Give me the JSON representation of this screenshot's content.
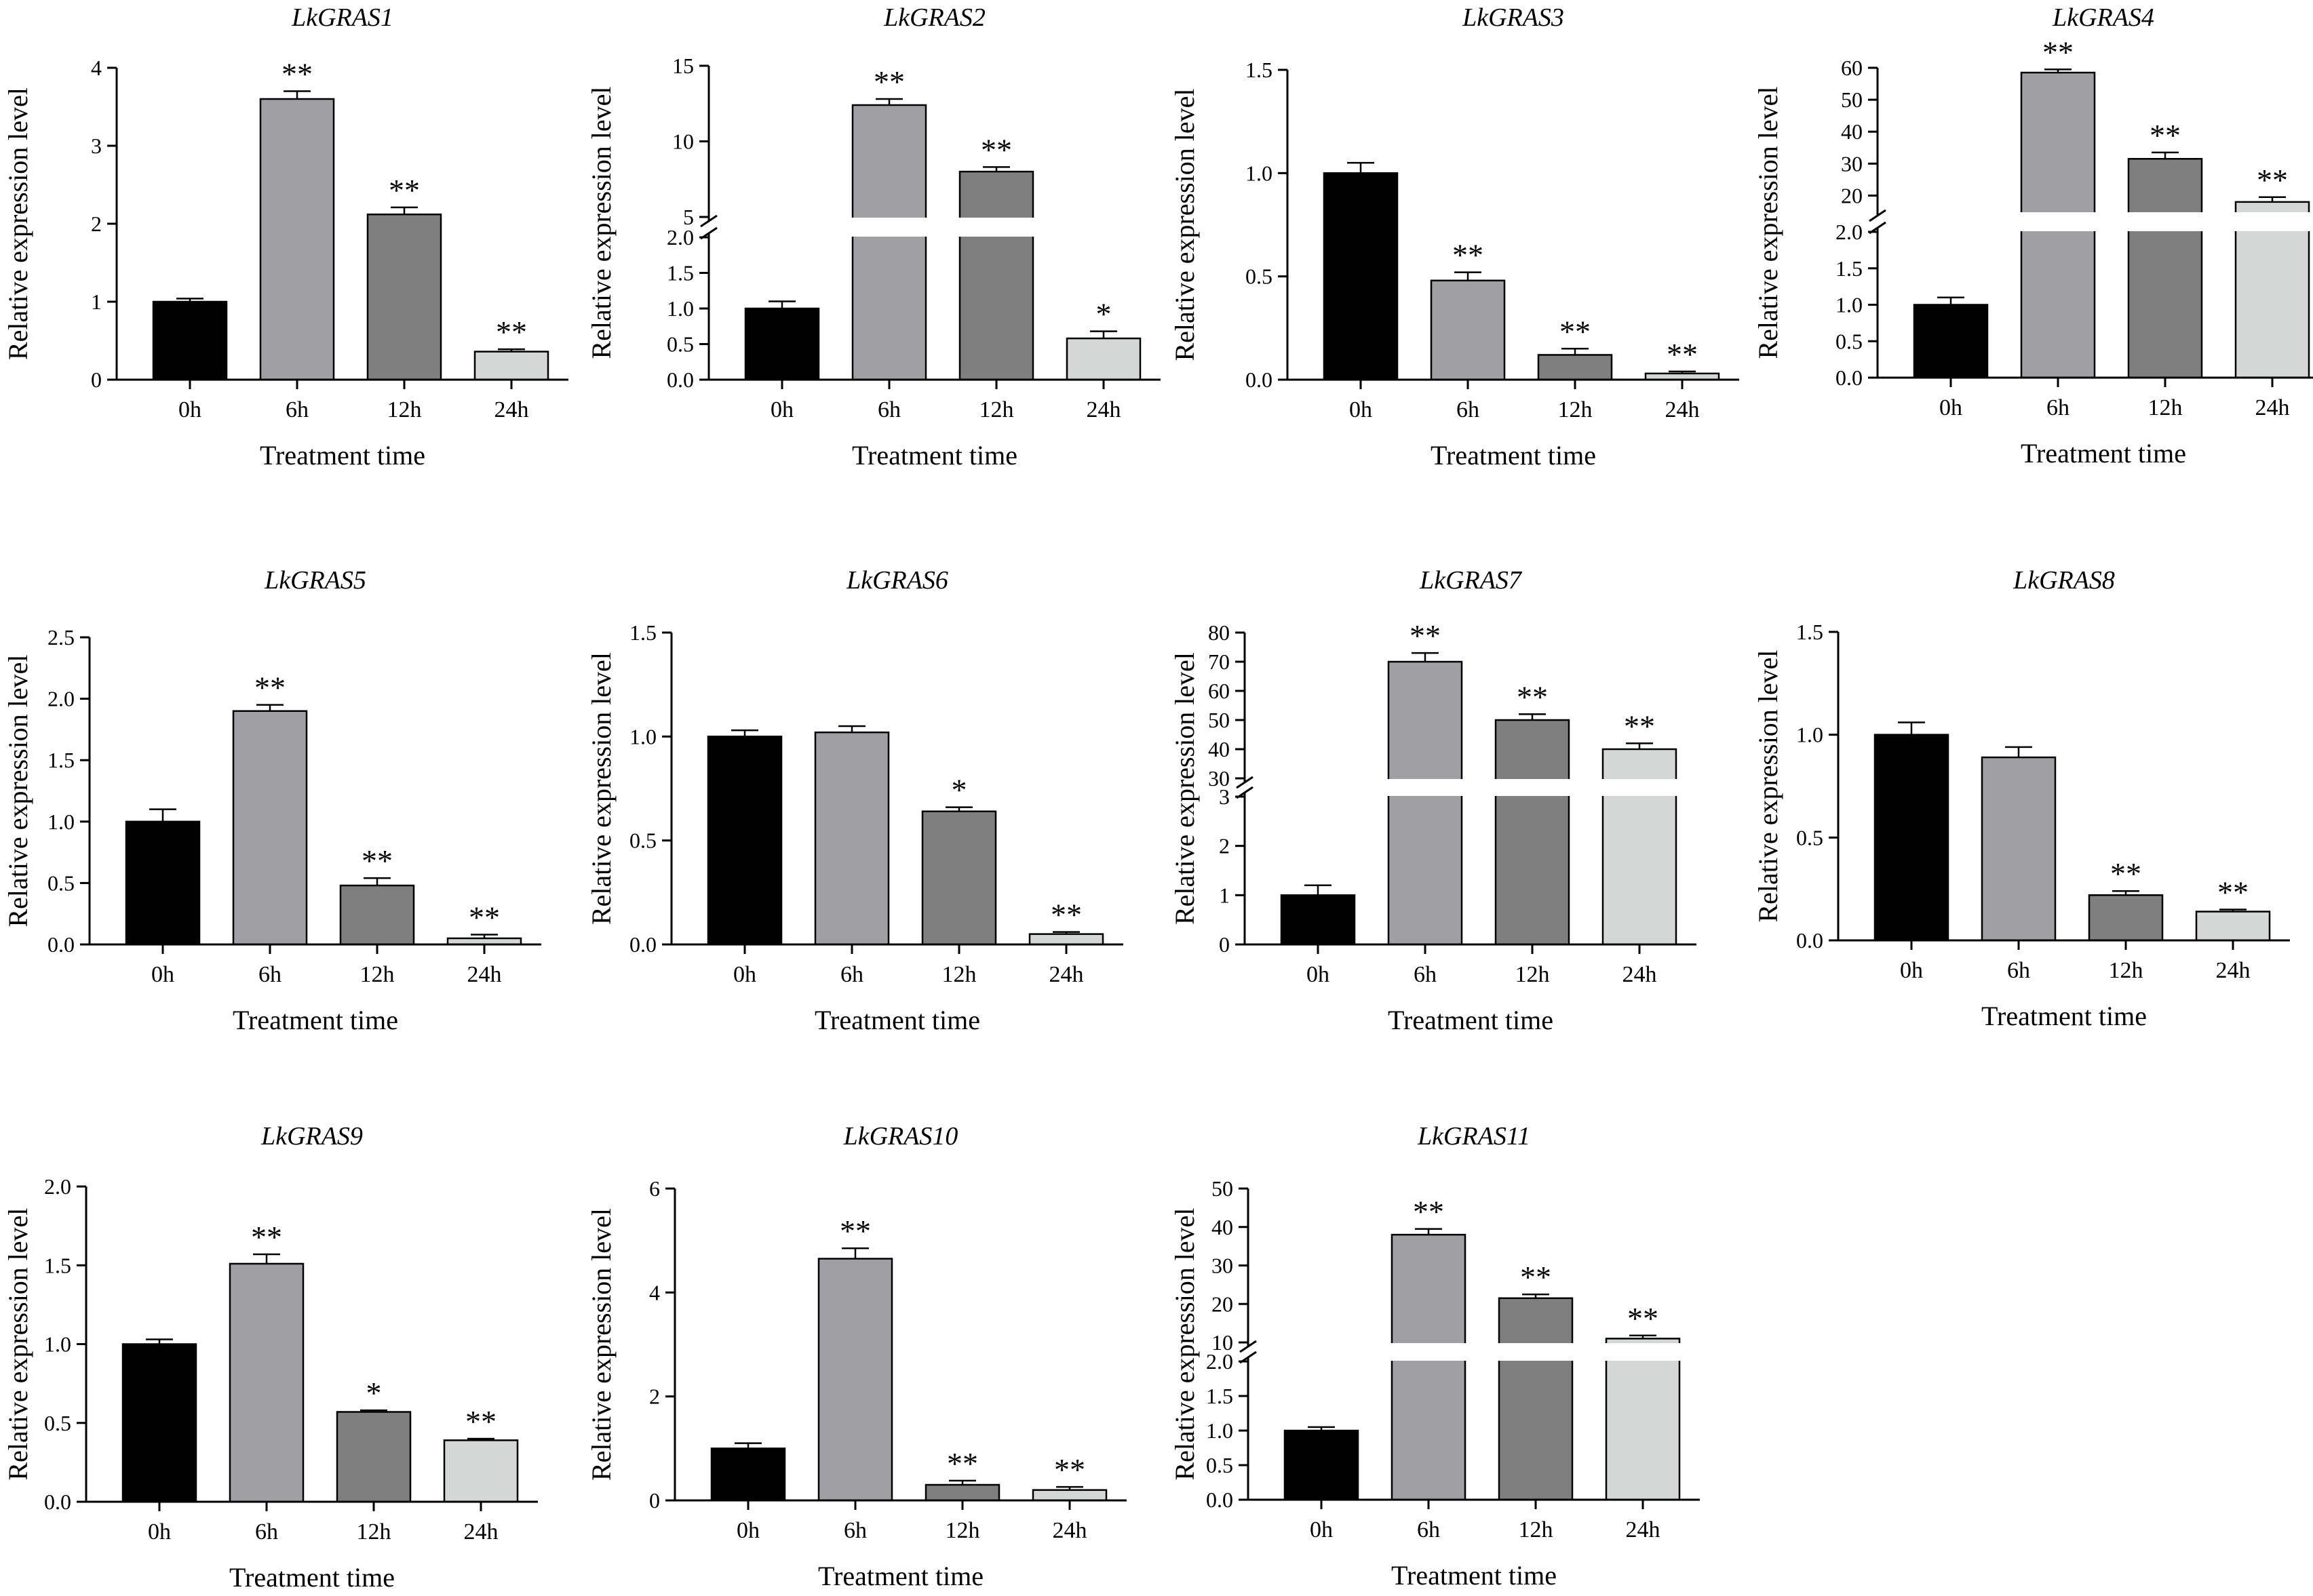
{
  "figure": {
    "categories": [
      "0h",
      "6h",
      "12h",
      "24h"
    ],
    "xlabel": "Treatment time",
    "ylabel": "Relative expression level",
    "bar_colors": [
      "#000000",
      "#a09fa4",
      "#7f7f7f",
      "#d5d7d6"
    ]
  },
  "chart_data": [
    {
      "type": "bar",
      "title": "LkGRAS1",
      "categories": [
        "0h",
        "6h",
        "12h",
        "24h"
      ],
      "values": [
        1.0,
        3.6,
        2.12,
        0.36
      ],
      "errors": [
        0.04,
        0.1,
        0.09,
        0.03
      ],
      "significance": [
        "",
        "**",
        "**",
        "**"
      ],
      "xlabel": "Treatment time",
      "ylabel": "Relative expression level",
      "ylim": [
        0,
        4
      ],
      "yticks": [
        "0",
        "1",
        "2",
        "3",
        "4"
      ],
      "grid": false
    },
    {
      "type": "bar",
      "title": "LkGRAS2",
      "categories": [
        "0h",
        "6h",
        "12h",
        "24h"
      ],
      "values": [
        1.0,
        12.4,
        8.0,
        0.58
      ],
      "errors": [
        0.1,
        0.4,
        0.3,
        0.1
      ],
      "significance": [
        "",
        "**",
        "**",
        "*"
      ],
      "xlabel": "Treatment time",
      "ylabel": "Relative expression level",
      "axis_break": true,
      "lower_ylim": [
        0,
        2.0
      ],
      "lower_yticks": [
        "0.0",
        "0.5",
        "1.0",
        "1.5",
        "2.0"
      ],
      "upper_ylim": [
        5,
        15
      ],
      "upper_yticks": [
        "5",
        "10",
        "15"
      ],
      "grid": false
    },
    {
      "type": "bar",
      "title": "LkGRAS3",
      "categories": [
        "0h",
        "6h",
        "12h",
        "24h"
      ],
      "values": [
        1.0,
        0.48,
        0.12,
        0.03
      ],
      "errors": [
        0.05,
        0.04,
        0.03,
        0.01
      ],
      "significance": [
        "",
        "**",
        "**",
        "**"
      ],
      "xlabel": "Treatment time",
      "ylabel": "Relative expression level",
      "ylim": [
        0,
        1.5
      ],
      "yticks": [
        "0.0",
        "0.5",
        "1.0",
        "1.5"
      ],
      "grid": false
    },
    {
      "type": "bar",
      "title": "LkGRAS4",
      "categories": [
        "0h",
        "6h",
        "12h",
        "24h"
      ],
      "values": [
        1.0,
        58.5,
        31.5,
        18.0
      ],
      "errors": [
        0.1,
        1.0,
        2.0,
        1.5
      ],
      "significance": [
        "",
        "**",
        "**",
        "**"
      ],
      "xlabel": "Treatment time",
      "ylabel": "Relative expression level",
      "axis_break": true,
      "lower_ylim": [
        0,
        2.0
      ],
      "lower_yticks": [
        "0.0",
        "0.5",
        "1.0",
        "1.5",
        "2.0"
      ],
      "upper_ylim": [
        15,
        60
      ],
      "upper_yticks": [
        "20",
        "30",
        "40",
        "50",
        "60"
      ],
      "grid": false
    },
    {
      "type": "bar",
      "title": "LkGRAS5",
      "categories": [
        "0h",
        "6h",
        "12h",
        "24h"
      ],
      "values": [
        1.0,
        1.9,
        0.48,
        0.05
      ],
      "errors": [
        0.1,
        0.05,
        0.06,
        0.03
      ],
      "significance": [
        "",
        "**",
        "**",
        "**"
      ],
      "xlabel": "Treatment time",
      "ylabel": "Relative expression level",
      "ylim": [
        0,
        2.5
      ],
      "yticks": [
        "0.0",
        "0.5",
        "1.0",
        "1.5",
        "2.0",
        "2.5"
      ],
      "grid": false
    },
    {
      "type": "bar",
      "title": "LkGRAS6",
      "categories": [
        "0h",
        "6h",
        "12h",
        "24h"
      ],
      "values": [
        1.0,
        1.02,
        0.64,
        0.05
      ],
      "errors": [
        0.03,
        0.03,
        0.02,
        0.01
      ],
      "significance": [
        "",
        "",
        "*",
        "**"
      ],
      "xlabel": "Treatment time",
      "ylabel": "Relative expression level",
      "ylim": [
        0,
        1.5
      ],
      "yticks": [
        "0.0",
        "0.5",
        "1.0",
        "1.5"
      ],
      "grid": false
    },
    {
      "type": "bar",
      "title": "LkGRAS7",
      "categories": [
        "0h",
        "6h",
        "12h",
        "24h"
      ],
      "values": [
        1.0,
        70.0,
        50.0,
        40.0
      ],
      "errors": [
        0.2,
        3.0,
        2.0,
        2.0
      ],
      "significance": [
        "",
        "**",
        "**",
        "**"
      ],
      "xlabel": "Treatment time",
      "ylabel": "Relative expression level",
      "axis_break": true,
      "lower_ylim": [
        0,
        3
      ],
      "lower_yticks": [
        "0",
        "1",
        "2",
        "3"
      ],
      "upper_ylim": [
        30,
        80
      ],
      "upper_yticks": [
        "30",
        "40",
        "50",
        "60",
        "70",
        "80"
      ],
      "grid": false
    },
    {
      "type": "bar",
      "title": "LkGRAS8",
      "categories": [
        "0h",
        "6h",
        "12h",
        "24h"
      ],
      "values": [
        1.0,
        0.89,
        0.22,
        0.14
      ],
      "errors": [
        0.06,
        0.05,
        0.02,
        0.01
      ],
      "significance": [
        "",
        "",
        "**",
        "**"
      ],
      "xlabel": "Treatment time",
      "ylabel": "Relative expression level",
      "ylim": [
        0,
        1.5
      ],
      "yticks": [
        "0.0",
        "0.5",
        "1.0",
        "1.5"
      ],
      "grid": false
    },
    {
      "type": "bar",
      "title": "LkGRAS9",
      "categories": [
        "0h",
        "6h",
        "12h",
        "24h"
      ],
      "values": [
        1.0,
        1.51,
        0.57,
        0.39
      ],
      "errors": [
        0.03,
        0.06,
        0.01,
        0.01
      ],
      "significance": [
        "",
        "**",
        "*",
        "**"
      ],
      "xlabel": "Treatment time",
      "ylabel": "Relative expression level",
      "ylim": [
        0,
        2.0
      ],
      "yticks": [
        "0.0",
        "0.5",
        "1.0",
        "1.5",
        "2.0"
      ],
      "grid": false
    },
    {
      "type": "bar",
      "title": "LkGRAS10",
      "categories": [
        "0h",
        "6h",
        "12h",
        "24h"
      ],
      "values": [
        1.0,
        4.65,
        0.3,
        0.2
      ],
      "errors": [
        0.1,
        0.2,
        0.08,
        0.06
      ],
      "significance": [
        "",
        "**",
        "**",
        "**"
      ],
      "xlabel": "Treatment time",
      "ylabel": "Relative expression level",
      "ylim": [
        0,
        6
      ],
      "yticks": [
        "0",
        "2",
        "4",
        "6"
      ],
      "grid": false
    },
    {
      "type": "bar",
      "title": "LkGRAS11",
      "categories": [
        "0h",
        "6h",
        "12h",
        "24h"
      ],
      "values": [
        1.0,
        38.0,
        21.5,
        11.0
      ],
      "errors": [
        0.05,
        1.5,
        1.0,
        0.8
      ],
      "significance": [
        "",
        "**",
        "**",
        "**"
      ],
      "xlabel": "Treatment time",
      "ylabel": "Relative expression level",
      "axis_break": true,
      "lower_ylim": [
        0,
        2.0
      ],
      "lower_yticks": [
        "0.0",
        "0.5",
        "1.0",
        "1.5",
        "2.0"
      ],
      "upper_ylim": [
        10,
        50
      ],
      "upper_yticks": [
        "10",
        "20",
        "30",
        "40",
        "50"
      ],
      "grid": false
    }
  ]
}
